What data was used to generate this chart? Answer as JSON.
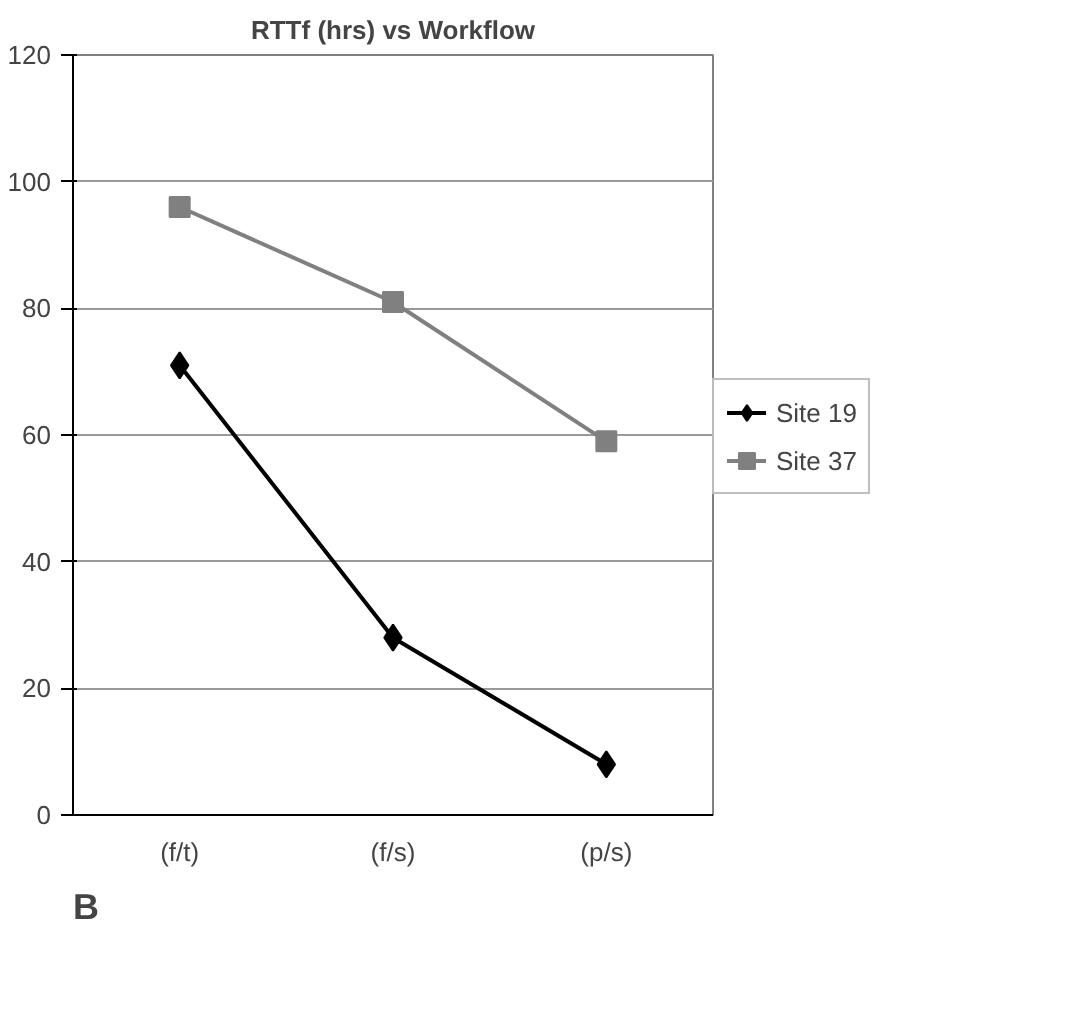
{
  "chart_data": {
    "type": "line",
    "title": "RTTf (hrs) vs Workflow",
    "categories": [
      "(f/t)",
      "(f/s)",
      "(p/s)"
    ],
    "series": [
      {
        "name": "Site 19",
        "color": "#000000",
        "marker": "diamond",
        "values": [
          71,
          28,
          8
        ]
      },
      {
        "name": "Site 37",
        "color": "#808080",
        "marker": "square",
        "values": [
          96,
          81,
          59
        ]
      }
    ],
    "ylim": [
      0,
      120
    ],
    "yticks": [
      0,
      20,
      40,
      60,
      80,
      100,
      120
    ],
    "grid": "y",
    "legend": "right",
    "annotations": [
      "B"
    ]
  }
}
